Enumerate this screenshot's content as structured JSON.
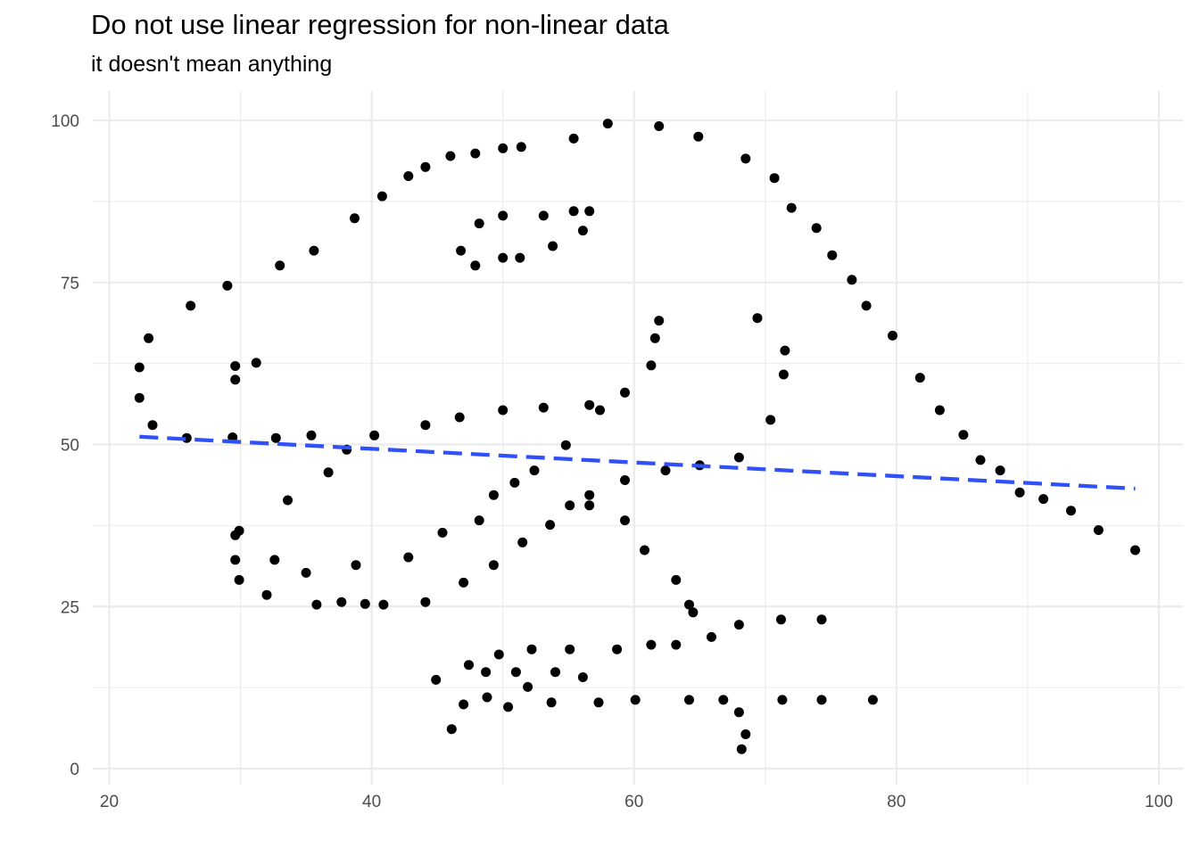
{
  "chart_data": {
    "type": "scatter",
    "title": "Do not use linear regression for non-linear data",
    "subtitle": "it doesn't mean anything",
    "xlabel": "",
    "ylabel": "",
    "xlim": [
      20,
      100
    ],
    "ylim": [
      0,
      100
    ],
    "x_ticks": [
      "20",
      "40",
      "60",
      "80",
      "100"
    ],
    "y_ticks": [
      "0",
      "25",
      "50",
      "75",
      "100"
    ],
    "grid": true,
    "colors": {
      "points": "#000000",
      "regression": "#3050f8",
      "grid": "#ebebeb",
      "tick_text": "#4d4d4d"
    },
    "regression_line": {
      "style": "dashed",
      "x": [
        22.3,
        98.2
      ],
      "y": [
        51.2,
        43.2
      ]
    },
    "points": [
      [
        22.3,
        61.9
      ],
      [
        23.0,
        66.4
      ],
      [
        26.2,
        71.4
      ],
      [
        29.0,
        74.5
      ],
      [
        33.0,
        77.6
      ],
      [
        35.6,
        79.9
      ],
      [
        38.7,
        84.9
      ],
      [
        40.8,
        88.3
      ],
      [
        42.8,
        91.4
      ],
      [
        44.1,
        92.8
      ],
      [
        46.0,
        94.5
      ],
      [
        47.9,
        94.9
      ],
      [
        50.0,
        95.7
      ],
      [
        51.4,
        95.9
      ],
      [
        55.4,
        97.2
      ],
      [
        58.0,
        99.5
      ],
      [
        61.9,
        99.1
      ],
      [
        64.9,
        97.5
      ],
      [
        68.5,
        94.1
      ],
      [
        70.7,
        91.1
      ],
      [
        72.0,
        86.5
      ],
      [
        73.9,
        83.4
      ],
      [
        75.1,
        79.2
      ],
      [
        76.6,
        75.4
      ],
      [
        77.7,
        71.4
      ],
      [
        79.7,
        66.8
      ],
      [
        81.8,
        60.3
      ],
      [
        83.3,
        55.3
      ],
      [
        85.1,
        51.5
      ],
      [
        86.4,
        47.6
      ],
      [
        87.9,
        46.0
      ],
      [
        89.4,
        42.6
      ],
      [
        91.2,
        41.6
      ],
      [
        93.3,
        39.8
      ],
      [
        95.4,
        36.8
      ],
      [
        98.2,
        33.7
      ],
      [
        22.3,
        57.2
      ],
      [
        23.3,
        53.0
      ],
      [
        25.9,
        51.0
      ],
      [
        29.4,
        51.1
      ],
      [
        29.6,
        60.0
      ],
      [
        29.6,
        62.1
      ],
      [
        31.2,
        62.6
      ],
      [
        32.7,
        51.0
      ],
      [
        35.4,
        51.4
      ],
      [
        38.1,
        49.2
      ],
      [
        40.2,
        51.4
      ],
      [
        44.1,
        53.0
      ],
      [
        46.7,
        54.2
      ],
      [
        50.0,
        55.3
      ],
      [
        53.1,
        55.7
      ],
      [
        54.8,
        49.9
      ],
      [
        56.6,
        56.1
      ],
      [
        57.4,
        55.3
      ],
      [
        59.3,
        58.0
      ],
      [
        61.3,
        62.2
      ],
      [
        61.6,
        66.4
      ],
      [
        61.9,
        69.1
      ],
      [
        62.4,
        46.0
      ],
      [
        65.0,
        46.8
      ],
      [
        68.0,
        48.0
      ],
      [
        69.4,
        69.5
      ],
      [
        70.4,
        53.8
      ],
      [
        71.4,
        60.8
      ],
      [
        71.5,
        64.5
      ],
      [
        29.6,
        36.0
      ],
      [
        29.9,
        36.7
      ],
      [
        29.6,
        32.2
      ],
      [
        29.9,
        29.1
      ],
      [
        32.6,
        32.2
      ],
      [
        32.0,
        26.8
      ],
      [
        33.6,
        41.4
      ],
      [
        35.0,
        30.2
      ],
      [
        35.8,
        25.3
      ],
      [
        36.7,
        45.7
      ],
      [
        37.7,
        25.7
      ],
      [
        38.8,
        31.4
      ],
      [
        39.5,
        25.4
      ],
      [
        40.9,
        25.3
      ],
      [
        42.8,
        32.6
      ],
      [
        44.1,
        25.7
      ],
      [
        45.4,
        36.4
      ],
      [
        47.0,
        28.7
      ],
      [
        48.2,
        38.3
      ],
      [
        49.3,
        31.4
      ],
      [
        49.3,
        42.2
      ],
      [
        50.9,
        44.1
      ],
      [
        51.5,
        34.9
      ],
      [
        52.4,
        46.0
      ],
      [
        53.6,
        37.6
      ],
      [
        55.1,
        40.6
      ],
      [
        56.6,
        40.6
      ],
      [
        56.6,
        42.2
      ],
      [
        59.3,
        44.5
      ],
      [
        59.3,
        38.3
      ],
      [
        60.8,
        33.7
      ],
      [
        63.2,
        29.1
      ],
      [
        64.2,
        25.3
      ],
      [
        64.5,
        24.1
      ],
      [
        46.8,
        79.9
      ],
      [
        47.9,
        77.6
      ],
      [
        48.2,
        84.1
      ],
      [
        50.0,
        78.8
      ],
      [
        50.0,
        85.3
      ],
      [
        51.3,
        78.8
      ],
      [
        53.1,
        85.3
      ],
      [
        53.8,
        80.6
      ],
      [
        55.4,
        86.0
      ],
      [
        56.1,
        83.0
      ],
      [
        56.6,
        86.0
      ],
      [
        44.9,
        13.7
      ],
      [
        46.1,
        6.1
      ],
      [
        47.0,
        9.9
      ],
      [
        47.4,
        16.0
      ],
      [
        48.7,
        14.9
      ],
      [
        48.8,
        11.0
      ],
      [
        49.7,
        17.6
      ],
      [
        50.4,
        9.5
      ],
      [
        51.0,
        14.9
      ],
      [
        51.9,
        12.6
      ],
      [
        52.2,
        18.4
      ],
      [
        53.7,
        10.2
      ],
      [
        54.0,
        14.9
      ],
      [
        55.1,
        18.4
      ],
      [
        56.1,
        14.1
      ],
      [
        57.3,
        10.2
      ],
      [
        58.7,
        18.4
      ],
      [
        60.1,
        10.6
      ],
      [
        61.3,
        19.1
      ],
      [
        63.2,
        19.1
      ],
      [
        64.2,
        10.6
      ],
      [
        65.9,
        20.3
      ],
      [
        66.8,
        10.6
      ],
      [
        68.0,
        22.2
      ],
      [
        68.0,
        8.7
      ],
      [
        68.2,
        3.0
      ],
      [
        68.5,
        5.3
      ],
      [
        71.2,
        23.0
      ],
      [
        71.3,
        10.6
      ],
      [
        74.3,
        23.0
      ],
      [
        74.3,
        10.6
      ],
      [
        78.2,
        10.6
      ]
    ]
  }
}
